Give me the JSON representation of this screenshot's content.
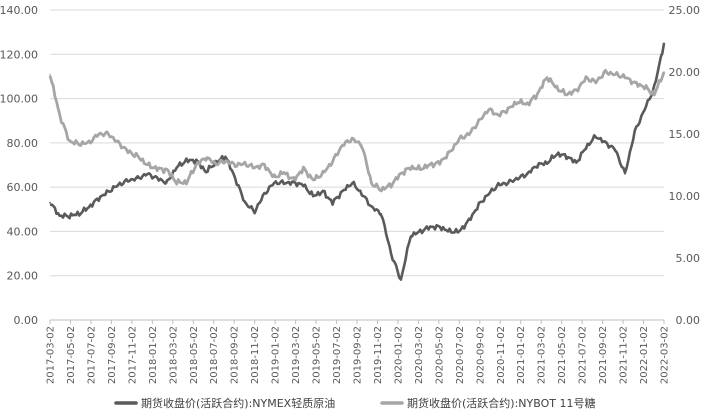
{
  "chart_data": {
    "type": "line",
    "x_ticks": [
      "2017-03-02",
      "2017-05-02",
      "2017-07-02",
      "2017-09-02",
      "2017-11-02",
      "2018-01-02",
      "2018-03-02",
      "2018-05-02",
      "2018-07-02",
      "2018-09-02",
      "2018-11-02",
      "2019-01-02",
      "2019-03-02",
      "2019-05-02",
      "2019-07-02",
      "2019-09-02",
      "2019-11-02",
      "2020-01-02",
      "2020-03-02",
      "2020-05-02",
      "2020-07-02",
      "2020-09-02",
      "2020-11-02",
      "2021-01-02",
      "2021-03-02",
      "2021-05-02",
      "2021-07-02",
      "2021-09-02",
      "2021-11-02",
      "2022-01-02",
      "2022-03-02"
    ],
    "y_left": {
      "ticks": [
        "0.00",
        "20.00",
        "40.00",
        "60.00",
        "80.00",
        "100.00",
        "120.00",
        "140.00"
      ],
      "ylim": [
        0,
        140
      ]
    },
    "y_right": {
      "ticks": [
        "0.00",
        "5.00",
        "10.00",
        "15.00",
        "20.00",
        "25.00"
      ],
      "ylim": [
        0,
        25
      ]
    },
    "grid": true,
    "legend_position": "bottom",
    "series": [
      {
        "name": "期货收盘价(活跃合约):NYMEX轻质原油",
        "axis": "left",
        "color": "#5a5a5a",
        "values": [
          53,
          47,
          47,
          48,
          51,
          55,
          58,
          61,
          63,
          64,
          66,
          64,
          62,
          69,
          72,
          72,
          67,
          71,
          74,
          64,
          53,
          49,
          57,
          62,
          62,
          62,
          61,
          56,
          58,
          53,
          58,
          62,
          57,
          51,
          48,
          30,
          18,
          38,
          40,
          42,
          42,
          40,
          40,
          45,
          52,
          57,
          61,
          62,
          64,
          66,
          70,
          71,
          75,
          74,
          71,
          78,
          83,
          80,
          77,
          66,
          85,
          95,
          105,
          125
        ]
      },
      {
        "name": "期货收盘价(活跃合约):NYBOT 11号糖",
        "axis": "right",
        "color": "#a6a6a6",
        "values": [
          19.8,
          16.5,
          14.4,
          14.2,
          14.3,
          15.0,
          15.0,
          14.3,
          13.6,
          13.2,
          12.5,
          12.2,
          12.1,
          11.1,
          11.1,
          12.5,
          13.1,
          12.6,
          12.8,
          12.5,
          12.6,
          12.3,
          12.5,
          11.5,
          11.9,
          11.3,
          12.2,
          11.3,
          11.8,
          12.8,
          14.1,
          14.6,
          14.1,
          11.0,
          10.5,
          10.9,
          11.8,
          12.3,
          12.2,
          12.5,
          12.7,
          13.5,
          14.6,
          15.0,
          16.0,
          17.0,
          16.5,
          17.0,
          17.6,
          17.4,
          18.2,
          19.6,
          18.7,
          18.2,
          18.5,
          19.5,
          19.2,
          20.0,
          19.8,
          19.6,
          19.1,
          18.8,
          18.2,
          20.0
        ]
      }
    ]
  }
}
